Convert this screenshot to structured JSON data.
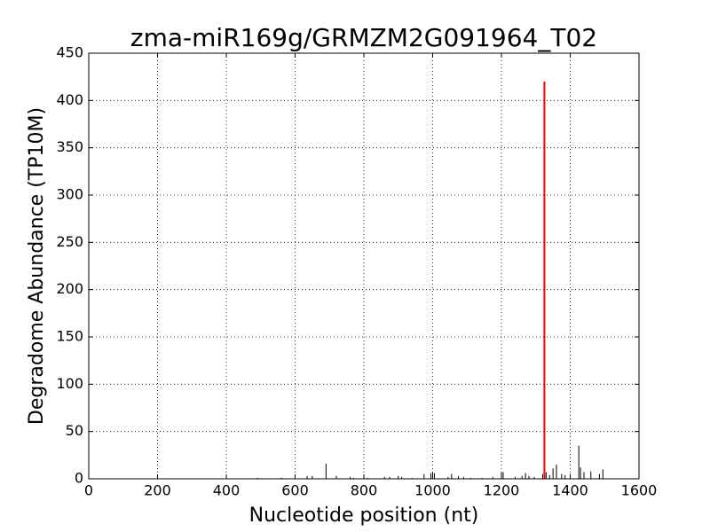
{
  "chart_data": {
    "type": "stem",
    "title": "zma-miR169g/GRMZM2G091964_T02",
    "x_label": "Nucleotide position (nt)",
    "y_label": "Degradome Abundance (TP10M)",
    "xlim": [
      0,
      1600
    ],
    "xticks": [
      0,
      200,
      400,
      600,
      800,
      1000,
      1200,
      1400,
      1600
    ],
    "ylim": [
      0,
      450
    ],
    "yticks": [
      0,
      50,
      100,
      150,
      200,
      250,
      300,
      350,
      400,
      450
    ],
    "grid": true,
    "series": [
      {
        "color": "#000000",
        "x": [
          490,
          560,
          600,
          635,
          650,
          690,
          720,
          760,
          770,
          800,
          810,
          860,
          875,
          900,
          910,
          940,
          975,
          995,
          1000,
          1005,
          1045,
          1055,
          1075,
          1090,
          1110,
          1145,
          1175,
          1200,
          1205,
          1240,
          1260,
          1270,
          1280,
          1295,
          1320,
          1330,
          1340,
          1350,
          1360,
          1375,
          1385,
          1400,
          1425,
          1430,
          1440,
          1460,
          1485,
          1495
        ],
        "values": [
          1,
          1,
          1,
          3,
          3,
          16,
          3,
          2,
          1,
          3,
          1,
          2,
          2,
          3,
          2,
          1,
          5,
          6,
          7,
          6,
          2,
          5,
          3,
          2,
          1,
          1,
          2,
          7,
          7,
          2,
          3,
          6,
          3,
          2,
          5,
          7,
          4,
          11,
          15,
          5,
          4,
          5,
          35,
          12,
          7,
          8,
          5,
          10
        ]
      },
      {
        "color": "#ff0000",
        "x": [
          1325
        ],
        "values": [
          420
        ]
      }
    ]
  }
}
